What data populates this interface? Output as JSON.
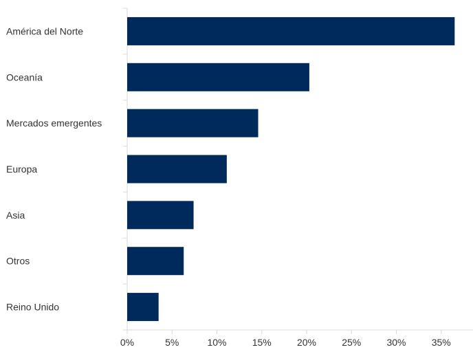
{
  "chart_data": {
    "type": "bar",
    "orientation": "horizontal",
    "categories": [
      "América del Norte",
      "Oceanía",
      "Mercados emergentes",
      "Europa",
      "Asia",
      "Otros",
      "Reino Unido"
    ],
    "values": [
      36.5,
      20.3,
      14.6,
      11.1,
      7.4,
      6.3,
      3.5
    ],
    "value_unit": "%",
    "xlim": [
      0,
      35
    ],
    "xticks": [
      0,
      5,
      10,
      15,
      20,
      25,
      30,
      35
    ],
    "xtick_labels": [
      "0%",
      "5%",
      "10%",
      "15%",
      "20%",
      "25%",
      "30%",
      "35%"
    ],
    "bar_color": "#002a5c",
    "axis_color": "#d9d9d9",
    "grid": false,
    "title": "",
    "xlabel": "",
    "ylabel": ""
  }
}
